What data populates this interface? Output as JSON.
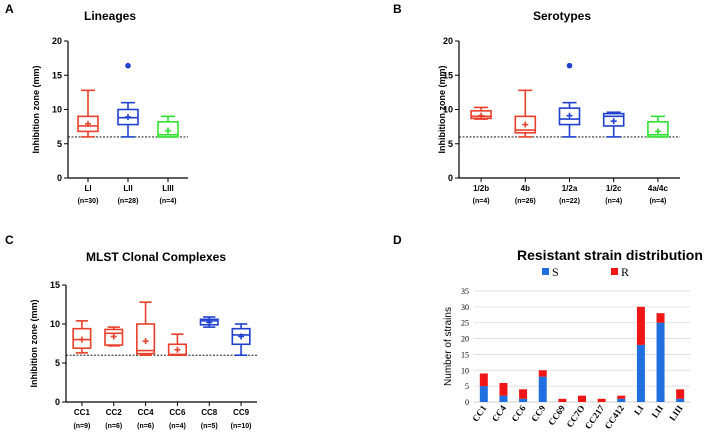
{
  "chart_data": [
    {
      "id": "A",
      "panel_letter": "A",
      "type": "box",
      "title": "Lineages",
      "ylabel": "Inhibition zone (mm)",
      "ylim": [
        0,
        20
      ],
      "yticks": [
        0,
        5,
        10,
        15,
        20
      ],
      "reference_line": 6,
      "categories": [
        "LI",
        "LII",
        "LIII"
      ],
      "n_labels": [
        "(n=30)",
        "(n=28)",
        "(n=4)"
      ],
      "colors": [
        "#e8402a",
        "#2040d0",
        "#30e030"
      ],
      "boxes": [
        {
          "min": 6,
          "q1": 6.8,
          "median": 7.6,
          "q3": 9,
          "max": 12.8,
          "mean": 7.9,
          "outliers": []
        },
        {
          "min": 6,
          "q1": 7.8,
          "median": 8.8,
          "q3": 10,
          "max": 11,
          "mean": 8.9,
          "outliers": [
            16.4
          ]
        },
        {
          "min": 6,
          "q1": 6,
          "median": 6.3,
          "q3": 8.2,
          "max": 9,
          "mean": 6.9,
          "outliers": []
        }
      ]
    },
    {
      "id": "B",
      "panel_letter": "B",
      "type": "box",
      "title": "Serotypes",
      "ylabel": "Inhibition zone (mm)",
      "ylim": [
        0,
        20
      ],
      "yticks": [
        0,
        5,
        10,
        15,
        20
      ],
      "reference_line": 6,
      "categories": [
        "1/2b",
        "4b",
        "1/2a",
        "1/2c",
        "4a/4c"
      ],
      "n_labels": [
        "(n=4)",
        "(n=26)",
        "(n=22)",
        "(n=4)",
        "(n=4)"
      ],
      "colors": [
        "#e8402a",
        "#e8402a",
        "#2040d0",
        "#2040d0",
        "#30e030"
      ],
      "boxes": [
        {
          "min": 8.6,
          "q1": 8.7,
          "median": 9,
          "q3": 9.8,
          "max": 10.3,
          "mean": 9.1,
          "outliers": []
        },
        {
          "min": 6,
          "q1": 6.6,
          "median": 7,
          "q3": 9,
          "max": 12.8,
          "mean": 7.8,
          "outliers": []
        },
        {
          "min": 6,
          "q1": 7.8,
          "median": 8.6,
          "q3": 10.2,
          "max": 11,
          "mean": 9.1,
          "outliers": [
            16.4
          ]
        },
        {
          "min": 6,
          "q1": 7.6,
          "median": 9,
          "q3": 9.4,
          "max": 9.6,
          "mean": 8.3,
          "outliers": []
        },
        {
          "min": 6,
          "q1": 6,
          "median": 6.3,
          "q3": 8.2,
          "max": 9,
          "mean": 6.8,
          "outliers": []
        }
      ]
    },
    {
      "id": "C",
      "panel_letter": "C",
      "type": "box",
      "title": "MLST Clonal Complexes",
      "ylabel": "Inhibition zone (mm)",
      "ylim": [
        0,
        15
      ],
      "yticks": [
        0,
        5,
        10,
        15
      ],
      "reference_line": 6,
      "categories": [
        "CC1",
        "CC2",
        "CC4",
        "CC6",
        "CC8",
        "CC9"
      ],
      "n_labels": [
        "(n=9)",
        "(n=6)",
        "(n=6)",
        "(n=4)",
        "(n=5)",
        "(n=10)"
      ],
      "colors": [
        "#e8402a",
        "#e8402a",
        "#e8402a",
        "#e8402a",
        "#2040d0",
        "#2040d0"
      ],
      "boxes": [
        {
          "min": 6.3,
          "q1": 6.9,
          "median": 8,
          "q3": 9.4,
          "max": 10.4,
          "mean": 8,
          "outliers": []
        },
        {
          "min": 7.2,
          "q1": 7.3,
          "median": 8.8,
          "q3": 9.3,
          "max": 9.6,
          "mean": 8.4,
          "outliers": []
        },
        {
          "min": 6,
          "q1": 6.2,
          "median": 6.6,
          "q3": 10,
          "max": 12.8,
          "mean": 7.8,
          "outliers": []
        },
        {
          "min": 6,
          "q1": 6,
          "median": 6.1,
          "q3": 7.4,
          "max": 8.7,
          "mean": 6.7,
          "outliers": []
        },
        {
          "min": 9.6,
          "q1": 9.9,
          "median": 10.4,
          "q3": 10.6,
          "max": 10.9,
          "mean": 10.2,
          "outliers": []
        },
        {
          "min": 6,
          "q1": 7.4,
          "median": 8.6,
          "q3": 9.4,
          "max": 10,
          "mean": 8.4,
          "outliers": []
        }
      ]
    },
    {
      "id": "D",
      "panel_letter": "D",
      "type": "bar",
      "stacked": true,
      "title": "Resistant strain distribution",
      "ylabel": "Number of strains",
      "ylim": [
        0,
        35
      ],
      "yticks": [
        0,
        5,
        10,
        15,
        20,
        25,
        30,
        35
      ],
      "legend_position": "top",
      "categories": [
        "CC1",
        "CC4",
        "CC6",
        "CC9",
        "CC69",
        "CC7O",
        "CC217",
        "CC412",
        "LI",
        "LII",
        "LIII"
      ],
      "series": [
        {
          "name": "S",
          "color": "#1f6fe0",
          "values": [
            5,
            2,
            1,
            8,
            0,
            0,
            0,
            1,
            18,
            25,
            1
          ]
        },
        {
          "name": "R",
          "color": "#f01616",
          "values": [
            4,
            4,
            3,
            2,
            1,
            2,
            1,
            1,
            12,
            3,
            3
          ]
        }
      ]
    }
  ]
}
